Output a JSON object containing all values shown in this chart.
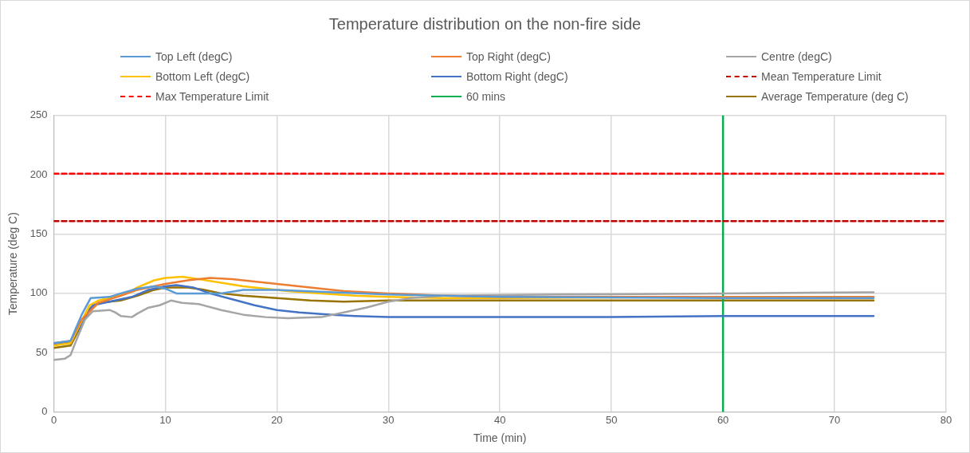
{
  "chart_data": {
    "type": "line",
    "title": "Temperature distribution on the non-fire side",
    "xlabel": "Time (min)",
    "ylabel": "Temperature (deg C)",
    "xlim": [
      0,
      80
    ],
    "xticks": [
      0,
      10,
      20,
      30,
      40,
      50,
      60,
      70,
      80
    ],
    "ylim": [
      0,
      250
    ],
    "yticks": [
      0,
      50,
      100,
      150,
      200,
      250
    ],
    "grid": true,
    "legend": "top",
    "marker": "none",
    "line_style": "solid",
    "series": [
      {
        "name": "Top Left (degC)",
        "color": "#5b9bd5",
        "x": [
          0,
          1.5,
          2.5,
          3.3,
          5,
          6,
          7.5,
          9,
          10,
          11,
          15,
          17,
          20,
          25,
          30,
          35,
          40,
          60,
          73.5
        ],
        "values": [
          58,
          60,
          82,
          96,
          97,
          100,
          104,
          106,
          104,
          100,
          100,
          103,
          103,
          101,
          99,
          98,
          97,
          96,
          96
        ]
      },
      {
        "name": "Top Right (degC)",
        "color": "#ed7d31",
        "x": [
          0,
          1.5,
          2.5,
          4,
          5,
          6,
          7.5,
          9,
          10,
          12,
          14,
          16,
          18,
          20,
          23,
          26,
          30,
          35,
          40,
          60,
          73.5
        ],
        "values": [
          58,
          60,
          78,
          92,
          95,
          98,
          103,
          106,
          108,
          111,
          113,
          112,
          110,
          108,
          105,
          102,
          100,
          98,
          97,
          97,
          97
        ]
      },
      {
        "name": "Centre (degC)",
        "color": "#a5a5a5",
        "x": [
          0,
          1,
          1.5,
          2,
          2.8,
          3.5,
          5,
          5.5,
          6,
          7,
          7.5,
          8.5,
          9.5,
          10.5,
          11.5,
          13,
          15,
          17,
          19,
          21,
          24,
          26,
          28,
          30,
          32,
          35,
          45,
          60,
          73.5
        ],
        "values": [
          44,
          45,
          48,
          60,
          78,
          85,
          86,
          84,
          81,
          80,
          83,
          88,
          90,
          94,
          92,
          91,
          86,
          82,
          80,
          79,
          80,
          84,
          88,
          93,
          96,
          98,
          99,
          100,
          101
        ]
      },
      {
        "name": "Bottom Left (degC)",
        "color": "#ffc000",
        "x": [
          0,
          1.5,
          3.2,
          4,
          5,
          6.5,
          7.5,
          9,
          10,
          11.5,
          13,
          15,
          17,
          19,
          21,
          24,
          27,
          30,
          35,
          40,
          60,
          73.5
        ],
        "values": [
          56,
          58,
          90,
          94,
          96,
          100,
          105,
          111,
          113,
          114,
          112,
          109,
          106,
          104,
          102,
          100,
          98,
          97,
          96,
          96,
          97,
          97
        ]
      },
      {
        "name": "Bottom Right (degC)",
        "color": "#4472c4",
        "x": [
          0,
          1.5,
          3.5,
          5,
          7,
          8.5,
          10,
          11,
          12.5,
          14,
          16,
          18,
          20,
          22,
          25,
          27,
          30,
          40,
          50,
          60,
          73.5
        ],
        "values": [
          57,
          59,
          90,
          93,
          97,
          103,
          106,
          107,
          105,
          100,
          95,
          90,
          86,
          84,
          82,
          81,
          80,
          80,
          80,
          81,
          81
        ]
      },
      {
        "name": "Mean Temperature Limit",
        "color": "#c00000",
        "line_style": "dashed",
        "x": [
          0,
          80
        ],
        "values": [
          161,
          161
        ]
      },
      {
        "name": "Max Temperature Limit",
        "color": "#ff0000",
        "line_style": "dashed",
        "x": [
          0,
          80
        ],
        "values": [
          201,
          201
        ]
      },
      {
        "name": "60 mins",
        "color": "#00b050",
        "x": [
          60,
          60
        ],
        "values": [
          0,
          250
        ]
      },
      {
        "name": "Average Temperature (deg C)",
        "color": "#997300",
        "x": [
          0,
          1.5,
          3.3,
          4,
          6,
          7.5,
          9,
          10,
          12,
          13.5,
          15,
          17,
          20,
          23,
          26,
          30,
          40,
          60,
          73.5
        ],
        "values": [
          54,
          56,
          88,
          92,
          94,
          98,
          103,
          105,
          105,
          103,
          100,
          98,
          96,
          94,
          93,
          94,
          94,
          94,
          94
        ]
      }
    ]
  }
}
